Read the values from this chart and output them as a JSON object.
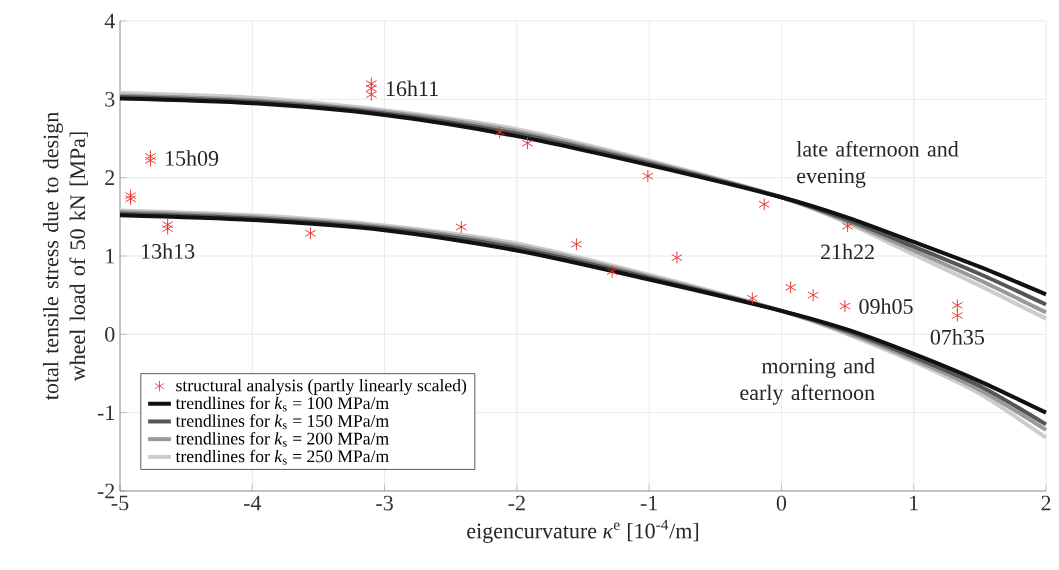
{
  "chart_data": {
    "type": "line",
    "xlabel": "eigencurvature *κ*$^{e}$ [10$^{-4}$/m]",
    "ylabel": "total tensile stress due to design wheel load of 50 kN [MPa]",
    "xlim": [
      -5,
      2
    ],
    "ylim": [
      -2,
      4
    ],
    "xticks": [
      -5,
      -4,
      -3,
      -2,
      -1,
      0,
      1,
      2
    ],
    "yticks": [
      -2,
      -1,
      0,
      1,
      2,
      3,
      4
    ],
    "grid": true,
    "legend": "bottom left",
    "series": [
      {
        "type": "scatter",
        "name": "structural analysis (partly linearly scaled)",
        "color": "#e8302a",
        "marker": "cross",
        "x": [
          -4.92,
          -4.92,
          -4.77,
          -4.77,
          -4.64,
          -4.64,
          -3.56,
          -3.1,
          -3.1,
          -3.1,
          -2.42,
          -2.13,
          -1.92,
          -1.55,
          -1.28,
          -1.01,
          -0.79,
          -0.13,
          0.5,
          -0.22,
          0.07,
          0.24,
          0.48,
          1.33,
          1.33
        ],
        "values": [
          1.77,
          1.73,
          2.27,
          2.22,
          1.4,
          1.35,
          1.29,
          3.2,
          3.14,
          3.06,
          1.37,
          2.58,
          2.44,
          1.15,
          0.8,
          2.02,
          0.98,
          1.66,
          1.38,
          0.46,
          0.6,
          0.5,
          0.36,
          0.37,
          0.24
        ]
      },
      {
        "name": "trendlines for *k*$_{s}$ = 100 MPa/m",
        "color": "#111111",
        "x": [
          -5,
          -4,
          -3,
          -2,
          -1,
          0,
          0.5,
          1,
          1.5,
          2
        ],
        "values": [
          3.01,
          2.95,
          2.8,
          2.53,
          2.16,
          1.75,
          1.49,
          1.18,
          0.86,
          0.51
        ]
      },
      {
        "color": "#111111",
        "x": [
          -5,
          -4,
          -3,
          -2,
          -1,
          0,
          0.5,
          1,
          1.5,
          2
        ],
        "values": [
          1.52,
          1.46,
          1.33,
          1.07,
          0.7,
          0.3,
          0.06,
          -0.25,
          -0.6,
          -1.0
        ]
      },
      {
        "name": "trendlines for *k*$_{s}$ = 150 MPa/m",
        "color": "#555555",
        "x": [
          -5,
          -4,
          -3,
          -2,
          -1,
          0,
          0.5,
          1,
          1.5,
          2
        ],
        "values": [
          3.03,
          2.97,
          2.82,
          2.56,
          2.18,
          1.75,
          1.46,
          1.12,
          0.77,
          0.38
        ]
      },
      {
        "color": "#555555",
        "x": [
          -5,
          -4,
          -3,
          -2,
          -1,
          0,
          0.5,
          1,
          1.5,
          2
        ],
        "values": [
          1.54,
          1.48,
          1.35,
          1.1,
          0.72,
          0.3,
          0.04,
          -0.29,
          -0.66,
          -1.15
        ]
      },
      {
        "name": "trendlines for *k*$_{s}$ = 200 MPa/m",
        "color": "#999999",
        "x": [
          -5,
          -4,
          -3,
          -2,
          -1,
          0,
          0.5,
          1,
          1.5,
          2
        ],
        "values": [
          3.05,
          2.99,
          2.84,
          2.59,
          2.2,
          1.75,
          1.44,
          1.07,
          0.69,
          0.28
        ]
      },
      {
        "color": "#999999",
        "x": [
          -5,
          -4,
          -3,
          -2,
          -1,
          0,
          0.5,
          1,
          1.5,
          2
        ],
        "values": [
          1.56,
          1.5,
          1.37,
          1.13,
          0.74,
          0.3,
          0.02,
          -0.32,
          -0.71,
          -1.22
        ]
      },
      {
        "name": "trendlines for *k*$_{s}$ = 250 MPa/m",
        "color": "#cccccc",
        "x": [
          -5,
          -4,
          -3,
          -2,
          -1,
          0,
          0.5,
          1,
          1.5,
          2
        ],
        "values": [
          3.08,
          3.02,
          2.86,
          2.62,
          2.22,
          1.75,
          1.42,
          1.02,
          0.62,
          0.2
        ]
      },
      {
        "color": "#cccccc",
        "x": [
          -5,
          -4,
          -3,
          -2,
          -1,
          0,
          0.5,
          1,
          1.5,
          2
        ],
        "values": [
          1.58,
          1.52,
          1.39,
          1.16,
          0.76,
          0.3,
          0.0,
          -0.35,
          -0.76,
          -1.32
        ]
      }
    ],
    "annotations": [
      "late afternoon and evening",
      "morning and early afternoon",
      {
        "text": "15h09",
        "x": -4.77,
        "y": 2.25
      },
      {
        "text": "16h11",
        "x": -3.1,
        "y": 3.14
      },
      {
        "text": "13h13",
        "x": -4.64,
        "y": 1.37
      },
      {
        "text": "21h22",
        "x": 0.5,
        "y": 1.38
      },
      {
        "text": "09h05",
        "x": 0.48,
        "y": 0.36
      },
      {
        "text": "07h35",
        "x": 1.33,
        "y": 0.24
      }
    ]
  }
}
